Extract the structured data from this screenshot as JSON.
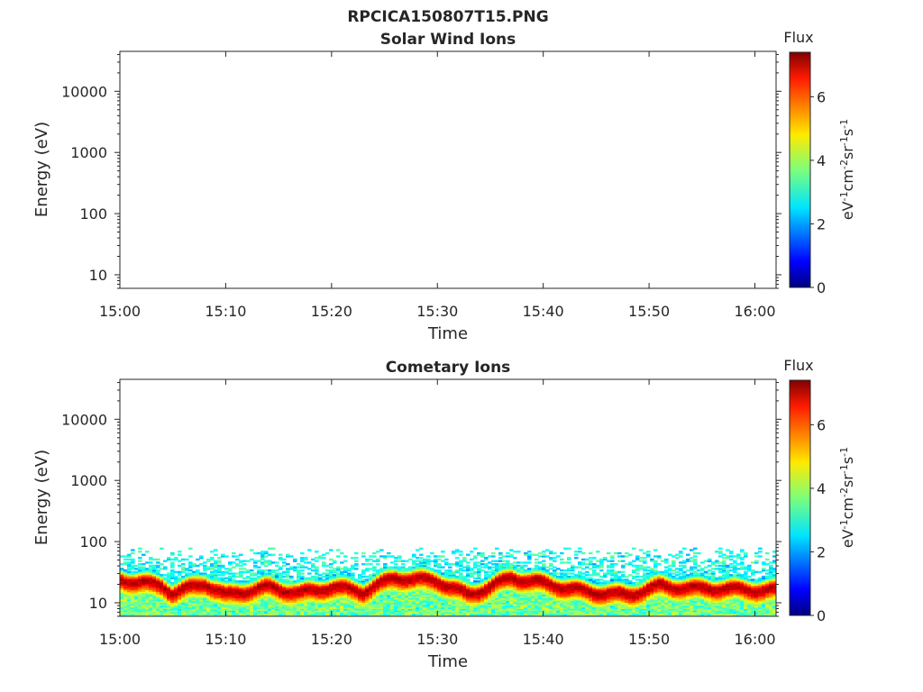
{
  "figure": {
    "title": "RPCICA150807T15.PNG"
  },
  "chart_data": [
    {
      "type": "heatmap",
      "title": "Solar Wind Ions",
      "xlabel": "Time",
      "ylabel": "Energy (eV)",
      "x_ticks": [
        "15:00",
        "15:10",
        "15:20",
        "15:30",
        "15:40",
        "15:50",
        "16:00"
      ],
      "x_range": [
        "15:00",
        "16:02"
      ],
      "y_scale": "log",
      "y_ticks": [
        10,
        100,
        1000,
        10000
      ],
      "y_tick_labels": [
        "10",
        "100",
        "1000",
        "10000"
      ],
      "y_range": [
        6,
        45000
      ],
      "colorbar": {
        "title": "Flux",
        "label": "eV-1cm-2sr-1s-1",
        "label_base": "eV",
        "label_parts": [
          [
            "-1",
            "cm"
          ],
          [
            "-2",
            "sr"
          ],
          [
            "-1",
            "s"
          ],
          [
            "-1",
            ""
          ]
        ],
        "ticks": [
          0,
          2,
          4,
          6
        ],
        "range": [
          0,
          7.4
        ],
        "colormap": "jet"
      },
      "data": "empty"
    },
    {
      "type": "heatmap",
      "title": "Cometary Ions",
      "xlabel": "Time",
      "ylabel": "Energy (eV)",
      "x_ticks": [
        "15:00",
        "15:10",
        "15:20",
        "15:30",
        "15:40",
        "15:50",
        "16:00"
      ],
      "x_range": [
        "15:00",
        "16:02"
      ],
      "y_scale": "log",
      "y_ticks": [
        10,
        100,
        1000,
        10000
      ],
      "y_tick_labels": [
        "10",
        "100",
        "1000",
        "10000"
      ],
      "y_range": [
        6,
        45000
      ],
      "colorbar": {
        "title": "Flux",
        "label": "eV-1cm-2sr-1s-1",
        "label_base": "eV",
        "label_parts": [
          [
            "-1",
            "cm"
          ],
          [
            "-2",
            "sr"
          ],
          [
            "-1",
            "s"
          ],
          [
            "-1",
            ""
          ]
        ],
        "ticks": [
          0,
          2,
          4,
          6
        ],
        "range": [
          0,
          7.4
        ],
        "colormap": "jet"
      },
      "flux_band": {
        "description": "intense flux band",
        "peak_flux": 7,
        "center_energy_eV": [
          [
            "15:00",
            25
          ],
          [
            "15:04",
            20
          ],
          [
            "15:05",
            15
          ],
          [
            "15:08",
            22
          ],
          [
            "15:10",
            14
          ],
          [
            "15:14",
            19
          ],
          [
            "15:17",
            15
          ],
          [
            "15:20",
            19
          ],
          [
            "15:23",
            16
          ],
          [
            "15:26",
            27
          ],
          [
            "15:30",
            24
          ],
          [
            "15:33",
            14
          ],
          [
            "15:37",
            27
          ],
          [
            "15:40",
            22
          ],
          [
            "15:44",
            16
          ],
          [
            "15:48",
            14
          ],
          [
            "15:51",
            20
          ],
          [
            "15:54",
            18
          ],
          [
            "15:57",
            18
          ],
          [
            "16:00",
            17
          ]
        ],
        "upper_edge_eV": 80,
        "lower_edge_eV": 6
      }
    }
  ]
}
